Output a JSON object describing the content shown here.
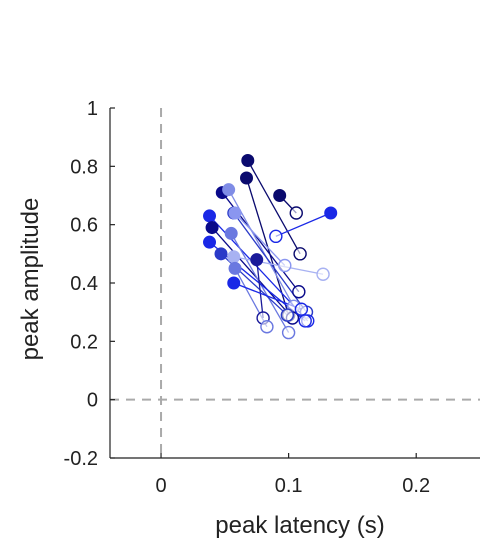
{
  "chart_data": {
    "type": "scatter",
    "xlabel": "peak latency (s)",
    "ylabel": "peak amplitude",
    "xlim": [
      -0.04,
      0.25
    ],
    "ylim": [
      -0.2,
      1.0
    ],
    "xticks": [
      0,
      0.1,
      0.2
    ],
    "xtick_labels": [
      "0",
      "0.1",
      "0.2"
    ],
    "yticks": [
      -0.2,
      0,
      0.2,
      0.4,
      0.6,
      0.8,
      1
    ],
    "ytick_labels": [
      "-0.2",
      "0",
      "0.2",
      "0.4",
      "0.6",
      "0.8",
      "1"
    ],
    "reference_lines": [
      {
        "orientation": "vertical",
        "value": 0,
        "style": "dashed",
        "color": "#aaaaaa"
      },
      {
        "orientation": "horizontal",
        "value": 0,
        "style": "dashed",
        "color": "#aaaaaa"
      }
    ],
    "grid": false,
    "marker_legend": {
      "filled": "start point",
      "open": "end point"
    },
    "pairs": [
      {
        "from": [
          0.068,
          0.82
        ],
        "to": [
          0.109,
          0.5
        ],
        "color": "#0a0a6e"
      },
      {
        "from": [
          0.093,
          0.7
        ],
        "to": [
          0.106,
          0.64
        ],
        "color": "#0a0a6e"
      },
      {
        "from": [
          0.133,
          0.64
        ],
        "to": [
          0.09,
          0.56
        ],
        "color": "#1a28e6"
      },
      {
        "from": [
          0.067,
          0.76
        ],
        "to": [
          0.1,
          0.29
        ],
        "color": "#0a0a6e"
      },
      {
        "from": [
          0.048,
          0.71
        ],
        "to": [
          0.108,
          0.37
        ],
        "color": "#0a0a8a"
      },
      {
        "from": [
          0.053,
          0.72
        ],
        "to": [
          0.104,
          0.32
        ],
        "color": "#7f8ce6"
      },
      {
        "from": [
          0.057,
          0.64
        ],
        "to": [
          0.114,
          0.3
        ],
        "color": "#2a3ac8"
      },
      {
        "from": [
          0.058,
          0.64
        ],
        "to": [
          0.097,
          0.46
        ],
        "color": "#8a96f0"
      },
      {
        "from": [
          0.038,
          0.63
        ],
        "to": [
          0.115,
          0.27
        ],
        "color": "#1a28e6"
      },
      {
        "from": [
          0.04,
          0.59
        ],
        "to": [
          0.103,
          0.28
        ],
        "color": "#0a0a8a"
      },
      {
        "from": [
          0.055,
          0.57
        ],
        "to": [
          0.1,
          0.23
        ],
        "color": "#6a78e0"
      },
      {
        "from": [
          0.038,
          0.54
        ],
        "to": [
          0.113,
          0.27
        ],
        "color": "#1a28e6"
      },
      {
        "from": [
          0.047,
          0.5
        ],
        "to": [
          0.099,
          0.29
        ],
        "color": "#2a3ac8"
      },
      {
        "from": [
          0.057,
          0.49
        ],
        "to": [
          0.127,
          0.43
        ],
        "color": "#a8b2f2"
      },
      {
        "from": [
          0.075,
          0.48
        ],
        "to": [
          0.08,
          0.28
        ],
        "color": "#1a1a9a"
      },
      {
        "from": [
          0.058,
          0.45
        ],
        "to": [
          0.083,
          0.25
        ],
        "color": "#6a78e0"
      },
      {
        "from": [
          0.057,
          0.4
        ],
        "to": [
          0.11,
          0.31
        ],
        "color": "#1a28e6"
      }
    ]
  }
}
